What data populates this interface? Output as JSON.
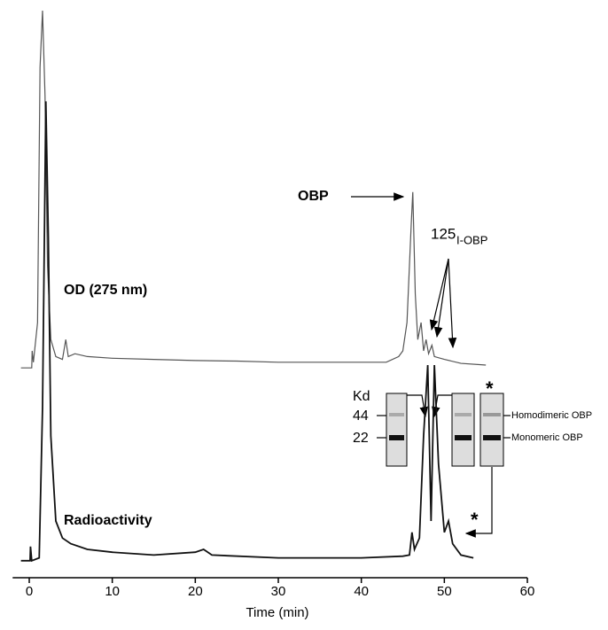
{
  "chart_data": {
    "type": "line",
    "xlabel": "Time (min)",
    "xlim": [
      -2,
      60
    ],
    "xticks": [
      0,
      10,
      20,
      30,
      40,
      50,
      60
    ],
    "ylim": [
      0,
      100
    ],
    "series": [
      {
        "name": "OD (275 nm)",
        "color": "#555555",
        "x": [
          -1,
          0.3,
          0.35,
          0.5,
          1.0,
          1.3,
          1.6,
          1.9,
          2.2,
          2.6,
          3.2,
          4.0,
          4.4,
          4.7,
          5.5,
          7,
          10,
          15,
          20,
          25,
          30,
          35,
          40,
          43,
          44.5,
          45,
          45.5,
          46.0,
          46.2,
          46.5,
          46.8,
          47.2,
          47.5,
          47.8,
          48.1,
          48.5,
          48.8,
          50,
          52,
          55
        ],
        "values": [
          37,
          37,
          40,
          38,
          45,
          90,
          100,
          85,
          55,
          42,
          39,
          38.5,
          42,
          39,
          39.5,
          39,
          38.7,
          38.5,
          38.3,
          38.2,
          38,
          38,
          38,
          38,
          39,
          40,
          45,
          62,
          68,
          50,
          42,
          45,
          40,
          42,
          39.5,
          41,
          39,
          38.5,
          37.8,
          37.5
        ]
      },
      {
        "name": "Radioactivity",
        "color": "#111111",
        "x": [
          -1,
          0.1,
          0.15,
          0.3,
          1.2,
          1.6,
          2.0,
          2.3,
          2.6,
          3.2,
          4,
          5,
          7,
          10,
          15,
          20,
          21,
          22,
          30,
          40,
          45,
          45.8,
          46.1,
          46.4,
          47,
          47.5,
          48,
          48.4,
          48.8,
          49.3,
          50,
          50.5,
          51,
          52,
          53.5
        ],
        "values": [
          3,
          3,
          5.5,
          3,
          3.5,
          30,
          84,
          60,
          25,
          10,
          7,
          6,
          5,
          4.5,
          4,
          4.5,
          5,
          4,
          3.5,
          3.5,
          3.8,
          4,
          8,
          5,
          7,
          25,
          37.5,
          10,
          37.5,
          20,
          8,
          10,
          6,
          4,
          3.5
        ]
      }
    ],
    "annotations": {
      "obp": "OBP",
      "iso_mass": "125",
      "iso_label": "I-OBP",
      "star_trace": "*",
      "star_gel": "*",
      "kd": "Kd",
      "kd_44": "44",
      "kd_22": "22",
      "homodimer": "Homodimeric OBP",
      "monomer": "Monomeric OBP"
    }
  }
}
